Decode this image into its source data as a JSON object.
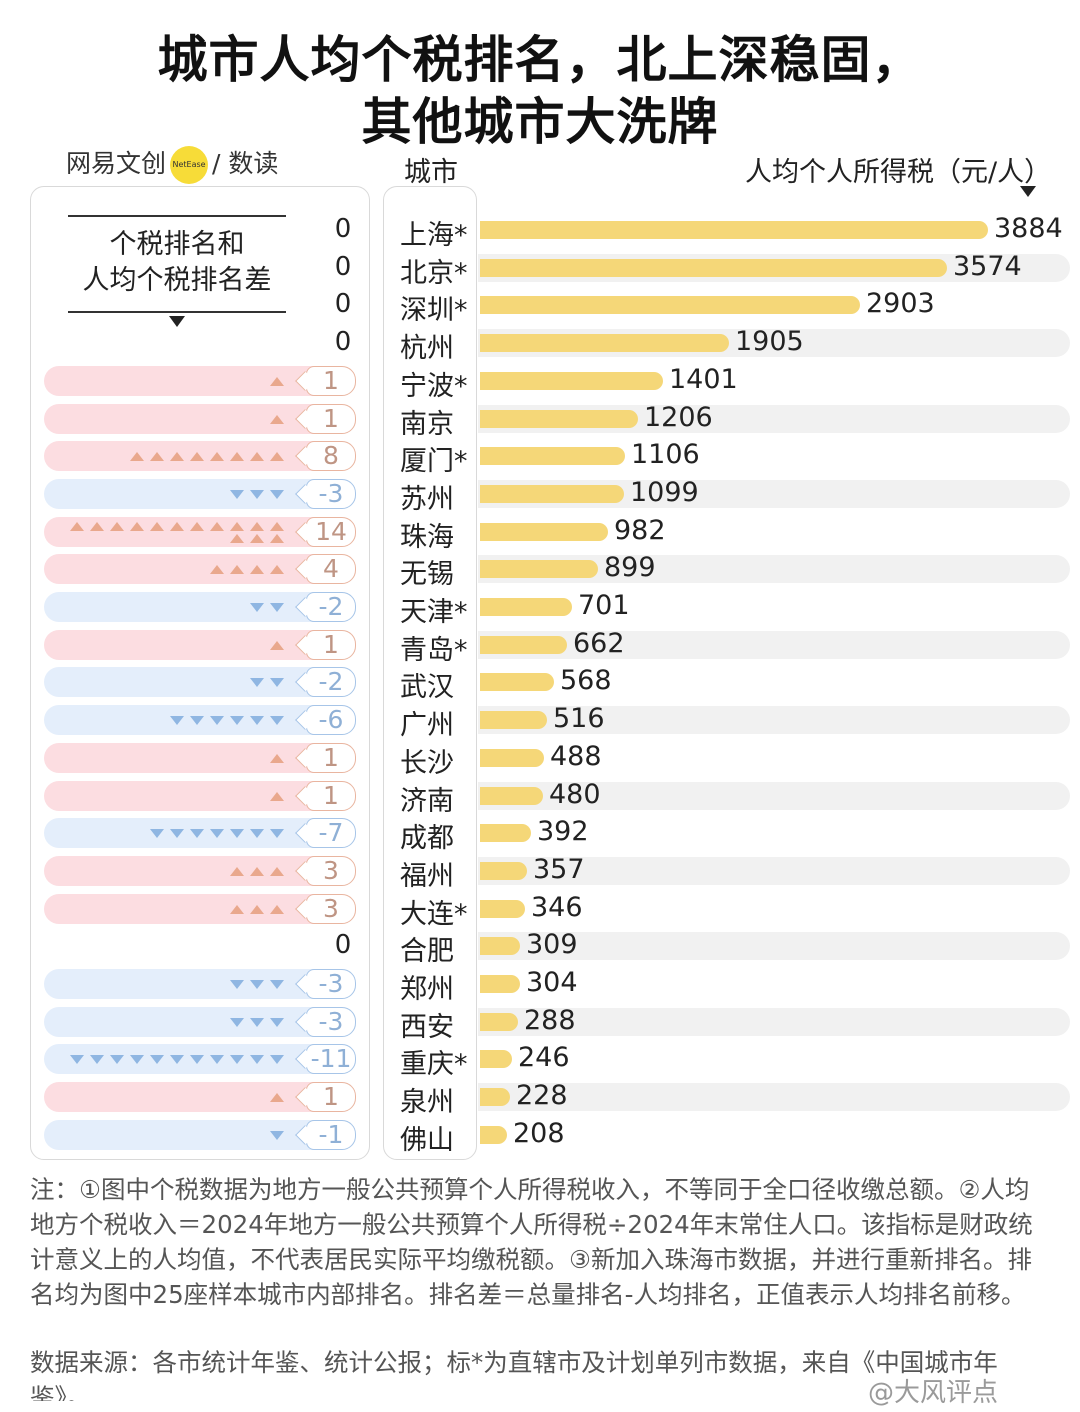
{
  "title_line1": "城市人均个税排名，北上深稳固，",
  "title_line2": "其他城市大洗牌",
  "brand": {
    "text": "网易文创",
    "logo_text": "NetEase",
    "suffix": "/ 数读"
  },
  "headers": {
    "city": "城市",
    "value": "人均个人所得税（元/人）"
  },
  "diff_label_line1": "个税排名和",
  "diff_label_line2": "人均个税排名差",
  "colors": {
    "bar": "#f5d778",
    "up": "#e9a88d",
    "down": "#8fb6e2"
  },
  "chart_data": {
    "type": "bar",
    "orientation": "horizontal",
    "ylabel": "人均个人所得税（元/人）",
    "xlabel": "城市",
    "categories": [
      "上海*",
      "北京*",
      "深圳*",
      "杭州",
      "宁波*",
      "南京",
      "厦门*",
      "苏州",
      "珠海",
      "无锡",
      "天津*",
      "青岛*",
      "武汉",
      "广州",
      "长沙",
      "济南",
      "成都",
      "福州",
      "大连*",
      "合肥",
      "郑州",
      "西安",
      "重庆*",
      "泉州",
      "佛山"
    ],
    "values": [
      3884,
      3574,
      2903,
      1905,
      1401,
      1206,
      1106,
      1099,
      982,
      899,
      701,
      662,
      568,
      516,
      488,
      480,
      392,
      357,
      346,
      309,
      304,
      288,
      246,
      228,
      208
    ],
    "rank_diff": [
      0,
      0,
      0,
      0,
      1,
      1,
      8,
      -3,
      14,
      4,
      -2,
      1,
      -2,
      -6,
      1,
      1,
      -7,
      3,
      3,
      0,
      -3,
      -3,
      -11,
      1,
      -1
    ],
    "rank_diff_labels": [
      "0",
      "0",
      "0",
      "0",
      "1",
      "1",
      "8",
      "-3",
      "14",
      "4",
      "-2",
      "1",
      "-2",
      "-6",
      "1",
      "1",
      "-7",
      "3",
      "3",
      "0",
      "-3",
      "-3",
      "-11",
      "1",
      "-1"
    ]
  },
  "note": "注：①图中个税数据为地方一般公共预算个人所得税收入，不等同于全口径收缴总额。②人均地方个税收入＝2024年地方一般公共预算个人所得税÷2024年末常住人口。该指标是财政统计意义上的人均值，不代表居民实际平均缴税额。③新加入珠海市数据，并进行重新排名。排名均为图中25座样本城市内部排名。排名差＝总量排名-人均排名，正值表示人均排名前移。",
  "source": "数据来源：各市统计年鉴、统计公报；标*为直辖市及计划单列市数据，来自《中国城市年鉴》。",
  "watermark": "@大风评点"
}
